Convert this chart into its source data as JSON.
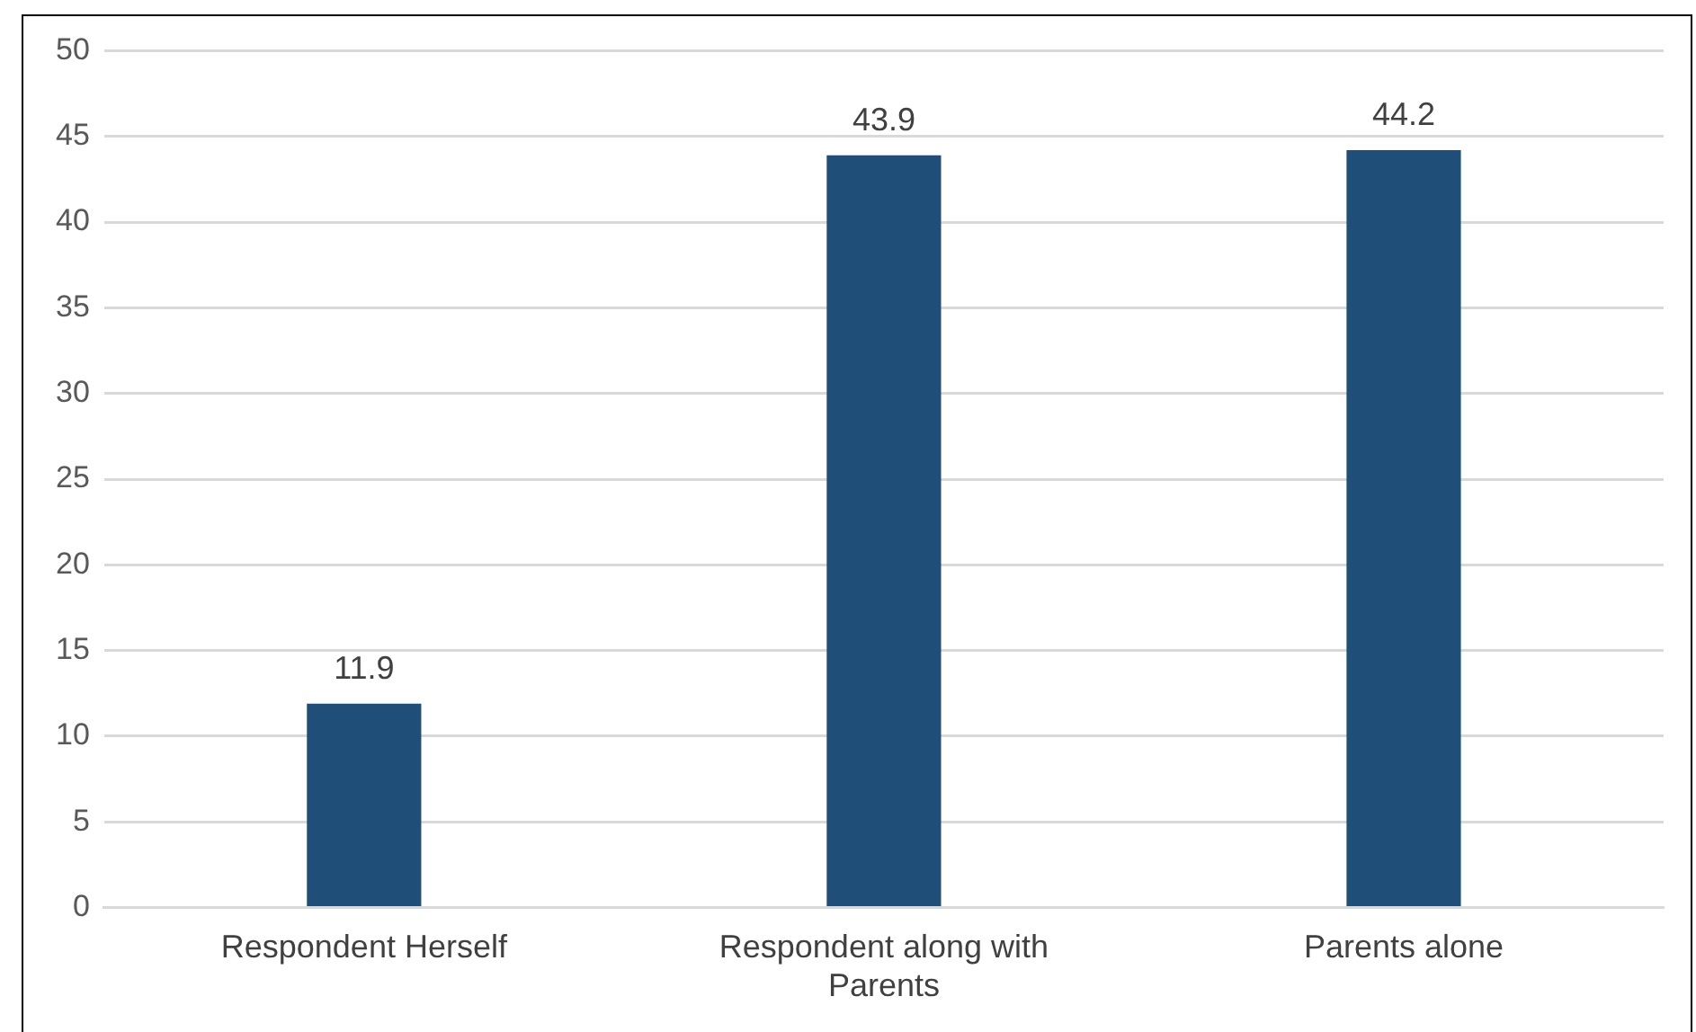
{
  "chart_data": {
    "type": "bar",
    "categories": [
      "Respondent Herself",
      "Respondent along with Parents",
      "Parents alone"
    ],
    "values": [
      11.9,
      43.9,
      44.2
    ],
    "color": "#1f4e79",
    "ylim": [
      0,
      50
    ],
    "yticks": [
      0,
      5,
      10,
      15,
      20,
      25,
      30,
      35,
      40,
      45,
      50
    ],
    "grid": "y",
    "data_labels": true
  }
}
